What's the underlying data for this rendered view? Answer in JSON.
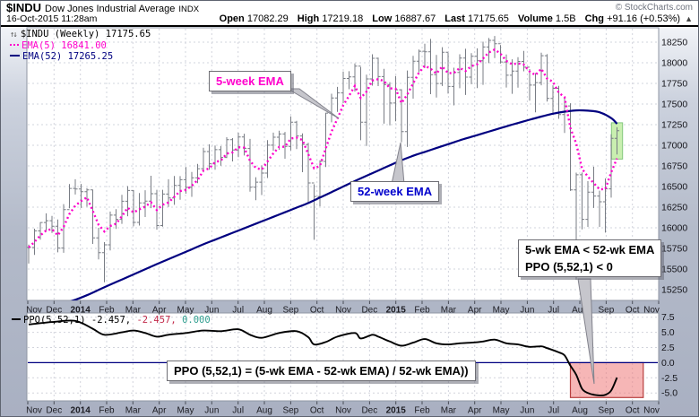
{
  "header": {
    "symbol": "$INDU",
    "name": "Dow Jones Industrial Average",
    "exchange": "INDX",
    "datetime": "16-Oct-2015 11:28am",
    "copyright": "© StockCharts.com",
    "quote": {
      "open": {
        "label": "Open",
        "value": "17082.29"
      },
      "high": {
        "label": "High",
        "value": "17219.18"
      },
      "low": {
        "label": "Low",
        "value": "16887.67"
      },
      "last": {
        "label": "Last",
        "value": "17175.65"
      },
      "volume": {
        "label": "Volume",
        "value": "1.5B"
      },
      "chg": {
        "label": "Chg",
        "value": "+91.16 (+0.53%)"
      },
      "direction_arrow": "▲"
    }
  },
  "legend": {
    "toggle_icon": "↑↓",
    "symbol_label": "$INDU (Weekly)",
    "symbol_value": "17175.65",
    "ema5_label": "EMA(5)",
    "ema5_value": "16841.00",
    "ema52_label": "EMA(52)",
    "ema52_value": "17265.25"
  },
  "ppo_legend": {
    "label": "PPO(5,52,1)",
    "v1": "-2.457,",
    "v2": "-2.457,",
    "v3": "0.000"
  },
  "annotations": {
    "ema5_note": "5-week EMA",
    "ema52_note": "52-week EMA",
    "cross_note_line1": "5-wk EMA < 52-wk EMA",
    "cross_note_line2": "PPO (5,52,1) < 0",
    "formula_note": "PPO (5,52,1) = (5-wk EMA - 52-wk EMA) / 52-wk EMA))"
  },
  "colors": {
    "ema5": "#ff00cc",
    "ema52": "#000080",
    "bar": "#787c84",
    "ppo_line": "#000000",
    "zero_line": "#000080",
    "neg_zone_fill": "#ef7a7a",
    "neg_zone_stroke": "#b84040",
    "highlight_fill": "#c9efb0",
    "highlight_stroke": "#84c77e",
    "grid": "#d2d4dc",
    "value2": "#c22a4a",
    "value3": "#2f9e8f"
  },
  "chart_data": {
    "type": "ohlc",
    "timeframe": "weekly",
    "title": "$INDU (Weekly)",
    "x_labels": [
      "Nov",
      "Dec",
      "2014",
      "Feb",
      "Mar",
      "Apr",
      "May",
      "Jun",
      "Jul",
      "Aug",
      "Sep",
      "Oct",
      "Nov",
      "Dec",
      "2015",
      "Feb",
      "Mar",
      "Apr",
      "May",
      "Jun",
      "Jul",
      "Aug",
      "Sep",
      "Oct",
      "Nov"
    ],
    "bold_x_labels": [
      "2014",
      "2015"
    ],
    "price_panel": {
      "y_ticks": [
        18250,
        18000,
        17750,
        17500,
        17250,
        17000,
        16750,
        16500,
        16250,
        16000,
        15750,
        15500,
        15250
      ],
      "ylim": [
        15120,
        18424
      ],
      "bars_hlc": [
        [
          15797,
          15567,
          15762
        ],
        [
          15990,
          15672,
          15962
        ],
        [
          16068,
          15856,
          16065
        ],
        [
          16175,
          15966,
          16086
        ],
        [
          16145,
          15937,
          16020
        ],
        [
          16100,
          15703,
          15755
        ],
        [
          16287,
          15697,
          16221
        ],
        [
          16530,
          16237,
          16478
        ],
        [
          16588,
          16404,
          16470
        ],
        [
          16532,
          16240,
          16437
        ],
        [
          16482,
          16257,
          16459
        ],
        [
          16463,
          15805,
          15879
        ],
        [
          16000,
          15618,
          15699
        ],
        [
          15826,
          15340,
          15794
        ],
        [
          16197,
          15727,
          16154
        ],
        [
          16226,
          15986,
          16103
        ],
        [
          16400,
          16048,
          16322
        ],
        [
          16506,
          16141,
          16453
        ],
        [
          16457,
          16020,
          16066
        ],
        [
          16421,
          16027,
          16303
        ],
        [
          16456,
          16131,
          16323
        ],
        [
          16631,
          16238,
          16413
        ],
        [
          16461,
          15978,
          16027
        ],
        [
          16461,
          16015,
          16409
        ],
        [
          16588,
          16254,
          16361
        ],
        [
          16627,
          16279,
          16513
        ],
        [
          16626,
          16341,
          16583
        ],
        [
          16736,
          16413,
          16491
        ],
        [
          16676,
          16375,
          16606
        ],
        [
          16774,
          16542,
          16717
        ],
        [
          16970,
          16673,
          16924
        ],
        [
          17012,
          16703,
          16776
        ],
        [
          16997,
          16703,
          16947
        ],
        [
          16990,
          16754,
          16852
        ],
        [
          17098,
          16846,
          17068
        ],
        [
          17087,
          16805,
          16944
        ],
        [
          17152,
          16857,
          17100
        ],
        [
          17140,
          16876,
          16961
        ],
        [
          17077,
          16437,
          16493
        ],
        [
          16613,
          16334,
          16554
        ],
        [
          16757,
          16397,
          16663
        ],
        [
          17062,
          16603,
          17001
        ],
        [
          17153,
          16934,
          17098
        ],
        [
          17176,
          16945,
          17137
        ],
        [
          17162,
          16837,
          16987
        ],
        [
          17350,
          16937,
          17280
        ],
        [
          17297,
          16953,
          17113
        ],
        [
          17145,
          16674,
          17010
        ],
        [
          17030,
          16301,
          16544
        ],
        [
          16527,
          15855,
          16380
        ],
        [
          16818,
          16260,
          16805
        ],
        [
          17395,
          16737,
          17390
        ],
        [
          17625,
          17279,
          17574
        ],
        [
          17708,
          17404,
          17635
        ],
        [
          17894,
          17511,
          17810
        ],
        [
          17898,
          17679,
          17828
        ],
        [
          17991,
          17651,
          17959
        ],
        [
          17950,
          17061,
          17281
        ],
        [
          17857,
          16993,
          17805
        ],
        [
          18103,
          17723,
          18054
        ],
        [
          18063,
          17718,
          17833
        ],
        [
          17926,
          17262,
          17737
        ],
        [
          17765,
          17243,
          17512
        ],
        [
          17840,
          17291,
          17673
        ],
        [
          17679,
          17037,
          17165
        ],
        [
          17907,
          16980,
          17824
        ],
        [
          18085,
          17565,
          18019
        ],
        [
          18161,
          17885,
          18140
        ],
        [
          18231,
          17938,
          18133
        ],
        [
          18289,
          17620,
          17857
        ],
        [
          18096,
          17578,
          17749
        ],
        [
          18189,
          17719,
          18128
        ],
        [
          18121,
          17626,
          17713
        ],
        [
          17940,
          17484,
          17883
        ],
        [
          18103,
          17691,
          18058
        ],
        [
          18170,
          17610,
          17826
        ],
        [
          18118,
          17740,
          18080
        ],
        [
          18175,
          17693,
          18024
        ],
        [
          18256,
          17733,
          18191
        ],
        [
          18300,
          17996,
          18272
        ],
        [
          18325,
          18057,
          18232
        ],
        [
          18215,
          17990,
          18010
        ],
        [
          18100,
          17700,
          17849
        ],
        [
          18042,
          17624,
          17899
        ],
        [
          18068,
          17699,
          18016
        ],
        [
          18144,
          17897,
          17947
        ],
        [
          17924,
          17540,
          17730
        ],
        [
          17875,
          17399,
          17760
        ],
        [
          18122,
          17727,
          18086
        ],
        [
          18105,
          17531,
          17569
        ],
        [
          17727,
          17371,
          17690
        ],
        [
          17721,
          17321,
          17373
        ],
        [
          17575,
          17150,
          17477
        ],
        [
          17510,
          16447,
          16460
        ],
        [
          16669,
          15370,
          16643
        ],
        [
          16670,
          15982,
          16102
        ],
        [
          16565,
          16011,
          16433
        ],
        [
          16740,
          16241,
          16385
        ],
        [
          16450,
          16011,
          16315
        ],
        [
          16598,
          15942,
          16472
        ],
        [
          17134,
          16366,
          17084
        ],
        [
          17219,
          16888,
          17176
        ]
      ],
      "ema5": {
        "period": 5,
        "last_value": 16841.0
      },
      "ema52": {
        "period": 52,
        "last_value": 17265.25,
        "points": [
          [
            0,
            14950
          ],
          [
            9,
            15150
          ],
          [
            13,
            15280
          ],
          [
            22,
            15560
          ],
          [
            30,
            15800
          ],
          [
            39,
            16050
          ],
          [
            48,
            16300
          ],
          [
            57,
            16600
          ],
          [
            65,
            16850
          ],
          [
            74,
            17060
          ],
          [
            82,
            17230
          ],
          [
            87,
            17330
          ],
          [
            91,
            17400
          ],
          [
            95,
            17430
          ],
          [
            98,
            17400
          ],
          [
            100,
            17330
          ],
          [
            101,
            17260
          ]
        ]
      }
    },
    "ppo_panel": {
      "label": "PPO(5,52,1)",
      "y_ticks": [
        7.5,
        5.0,
        2.5,
        0.0,
        -2.5,
        -5.0
      ],
      "ylim": [
        -6.3,
        8.2
      ],
      "zero_line": 0,
      "points": [
        [
          0,
          6.3
        ],
        [
          4,
          6.7
        ],
        [
          8,
          6.9
        ],
        [
          11,
          5.6
        ],
        [
          13,
          4.6
        ],
        [
          16,
          5.0
        ],
        [
          18,
          5.3
        ],
        [
          20,
          4.9
        ],
        [
          22,
          4.3
        ],
        [
          24,
          4.6
        ],
        [
          27,
          4.9
        ],
        [
          30,
          5.3
        ],
        [
          33,
          5.2
        ],
        [
          36,
          5.5
        ],
        [
          38,
          4.6
        ],
        [
          40,
          4.1
        ],
        [
          43,
          4.9
        ],
        [
          46,
          5.2
        ],
        [
          48,
          4.2
        ],
        [
          49,
          3.0
        ],
        [
          51,
          3.4
        ],
        [
          53,
          4.3
        ],
        [
          56,
          4.9
        ],
        [
          57,
          4.0
        ],
        [
          59,
          4.6
        ],
        [
          60,
          4.3
        ],
        [
          62,
          3.5
        ],
        [
          64,
          2.8
        ],
        [
          66,
          3.3
        ],
        [
          68,
          3.9
        ],
        [
          70,
          3.2
        ],
        [
          72,
          3.0
        ],
        [
          74,
          3.2
        ],
        [
          76,
          3.3
        ],
        [
          78,
          3.5
        ],
        [
          80,
          3.8
        ],
        [
          82,
          3.2
        ],
        [
          84,
          3.0
        ],
        [
          86,
          2.6
        ],
        [
          88,
          2.7
        ],
        [
          89,
          2.4
        ],
        [
          91,
          1.7
        ],
        [
          92,
          1.2
        ],
        [
          93,
          -0.5
        ],
        [
          94,
          -2.0
        ],
        [
          95,
          -4.3
        ],
        [
          96,
          -5.0
        ],
        [
          97,
          -5.3
        ],
        [
          98,
          -5.4
        ],
        [
          99,
          -5.3
        ],
        [
          100,
          -4.6
        ],
        [
          101,
          -2.457
        ]
      ],
      "negative_zone": {
        "from_week": 93,
        "to_week": 105.5,
        "top": 0,
        "bottom": -5.75
      }
    }
  }
}
